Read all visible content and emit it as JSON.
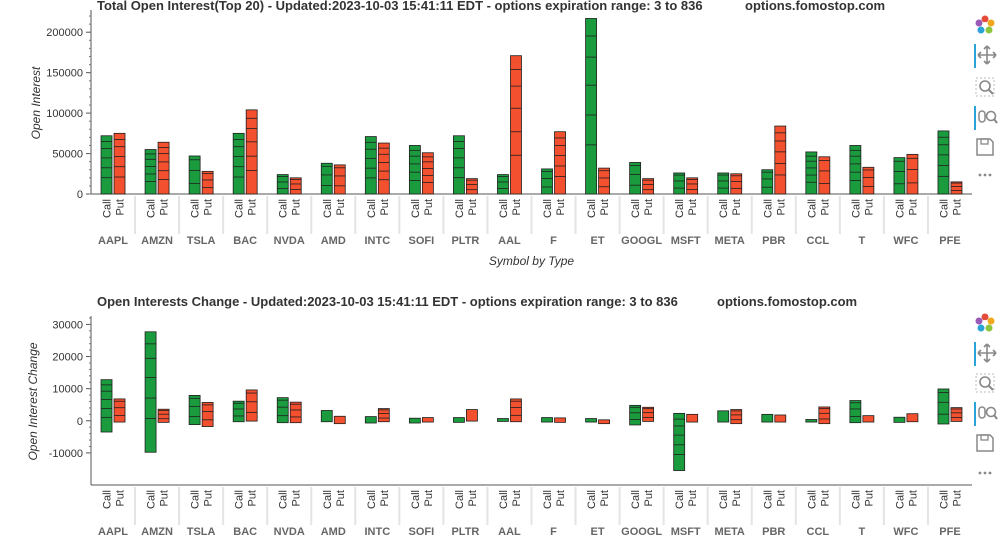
{
  "chart_data": [
    {
      "type": "bar",
      "title": "Total Open Interest(Top 20) - Updated:2023-10-03 15:41:11 EDT - options expiration range: 3 to 836",
      "watermark": "options.fomostop.com",
      "xlabel": "Symbol by Type",
      "ylabel": "Open Interest",
      "ylim": [
        0,
        225000
      ],
      "yticks": [
        0,
        50000,
        100000,
        150000,
        200000
      ],
      "ytick_labels": [
        "0",
        "50000",
        "100000",
        "150000",
        "200000"
      ],
      "categories": [
        "AAPL",
        "AMZN",
        "TSLA",
        "BAC",
        "NVDA",
        "AMD",
        "INTC",
        "SOFI",
        "PLTR",
        "AAL",
        "F",
        "ET",
        "GOOGL",
        "MSFT",
        "META",
        "PBR",
        "CCL",
        "T",
        "WFC",
        "PFE"
      ],
      "subcategories": [
        "Call",
        "Put"
      ],
      "series": [
        {
          "name": "Call",
          "color": "#1a9c3e",
          "values": [
            72000,
            55000,
            47000,
            75000,
            24000,
            38000,
            71000,
            60000,
            72000,
            24000,
            31000,
            217000,
            39000,
            26000,
            26000,
            30000,
            52000,
            60000,
            45000,
            78000
          ]
        },
        {
          "name": "Put",
          "color": "#f2502f",
          "values": [
            75000,
            64000,
            28000,
            104000,
            20000,
            36000,
            63000,
            51000,
            19000,
            171000,
            77000,
            32000,
            19000,
            20000,
            25000,
            84000,
            46000,
            33000,
            49000,
            15000
          ]
        }
      ]
    },
    {
      "type": "bar",
      "title": "Open Interests Change - Updated:2023-10-03 15:41:11 EDT - options expiration range: 3 to 836",
      "watermark": "options.fomostop.com",
      "xlabel": "",
      "ylabel": "Open Interest Change",
      "ylim": [
        -20000,
        32000
      ],
      "yticks": [
        -10000,
        0,
        10000,
        20000,
        30000
      ],
      "ytick_labels": [
        "-10000",
        "0",
        "10000",
        "20000",
        "30000"
      ],
      "categories": [
        "AAPL",
        "AMZN",
        "TSLA",
        "BAC",
        "NVDA",
        "AMD",
        "INTC",
        "SOFI",
        "PLTR",
        "AAL",
        "F",
        "ET",
        "GOOGL",
        "MSFT",
        "META",
        "PBR",
        "CCL",
        "T",
        "WFC",
        "PFE"
      ],
      "subcategories": [
        "Call",
        "Put"
      ],
      "series": [
        {
          "name": "Call",
          "color": "#1a9c3e",
          "ranges": [
            [
              -3500,
              12800
            ],
            [
              -9800,
              27700
            ],
            [
              -1200,
              7900
            ],
            [
              -300,
              6100
            ],
            [
              -600,
              7200
            ],
            [
              -300,
              3200
            ],
            [
              -700,
              1300
            ],
            [
              -700,
              800
            ],
            [
              -500,
              1000
            ],
            [
              -200,
              700
            ],
            [
              -400,
              1000
            ],
            [
              -400,
              700
            ],
            [
              -1300,
              4800
            ],
            [
              -15500,
              2300
            ],
            [
              -400,
              3100
            ],
            [
              -400,
              2000
            ],
            [
              -400,
              400
            ],
            [
              -600,
              6300
            ],
            [
              -500,
              1100
            ],
            [
              -1000,
              9900
            ]
          ]
        },
        {
          "name": "Put",
          "color": "#f2502f",
          "ranges": [
            [
              -400,
              6800
            ],
            [
              -500,
              3600
            ],
            [
              -1800,
              5700
            ],
            [
              -100,
              9600
            ],
            [
              -600,
              5800
            ],
            [
              -900,
              1400
            ],
            [
              -300,
              3800
            ],
            [
              -400,
              1000
            ],
            [
              -100,
              3500
            ],
            [
              -300,
              6800
            ],
            [
              -500,
              900
            ],
            [
              -900,
              300
            ],
            [
              -200,
              4200
            ],
            [
              -400,
              2000
            ],
            [
              -900,
              3500
            ],
            [
              -400,
              1800
            ],
            [
              -900,
              4300
            ],
            [
              -400,
              1600
            ],
            [
              -300,
              2200
            ],
            [
              -200,
              4100
            ]
          ]
        }
      ]
    }
  ]
}
